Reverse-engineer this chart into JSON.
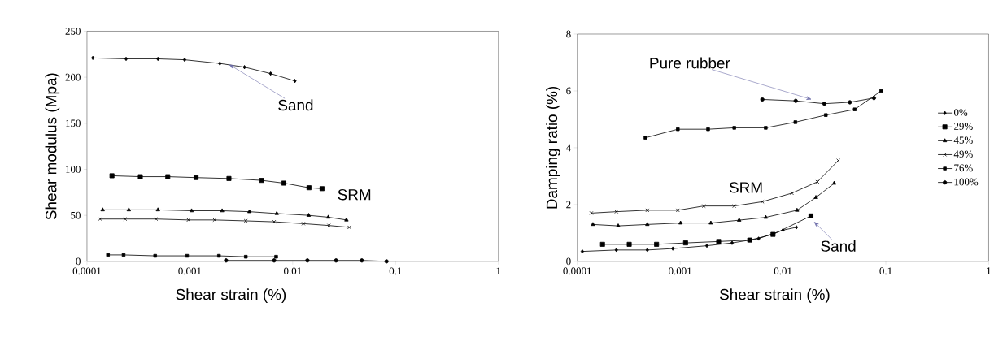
{
  "chart_data": [
    {
      "type": "line",
      "xlabel": "Shear strain (%)",
      "ylabel": "Shear modulus (Mpa)",
      "log": "x",
      "xlim": [
        0.0001,
        1
      ],
      "ylim": [
        0,
        250
      ],
      "xticks": [
        0.0001,
        0.001,
        0.01,
        0.1,
        1
      ],
      "yticks": [
        0,
        50,
        100,
        150,
        200,
        250
      ],
      "grid": false,
      "legend": false,
      "annotations": [
        {
          "text": "Sand",
          "x": 0.0024,
          "y": 214
        },
        "SRM"
      ],
      "series": [
        {
          "color": "#000000",
          "marker": "diamond",
          "x": [
            0.000114,
            0.00024,
            0.00049,
            0.00089,
            0.00196,
            0.0034,
            0.0061,
            0.0105
          ],
          "values": [
            221,
            220,
            220,
            219,
            215,
            211,
            204,
            196
          ]
        },
        {
          "color": "#000000",
          "marker": "square",
          "x": [
            0.000175,
            0.00033,
            0.00061,
            0.00115,
            0.0024,
            0.005,
            0.0082,
            0.0144,
            0.0193
          ],
          "values": [
            93,
            92,
            92,
            91,
            90,
            88,
            85,
            80,
            79
          ]
        },
        {
          "color": "#000000",
          "marker": "triangle",
          "x": [
            0.000142,
            0.000255,
            0.00049,
            0.00104,
            0.00206,
            0.0038,
            0.007,
            0.0143,
            0.0222,
            0.0333
          ],
          "values": [
            56,
            56,
            56,
            55,
            55,
            54,
            52,
            50,
            48,
            45
          ]
        },
        {
          "color": "#000000",
          "marker": "cross",
          "x": [
            0.000134,
            0.000235,
            0.00047,
            0.00097,
            0.00174,
            0.0035,
            0.0066,
            0.0127,
            0.0225,
            0.0355
          ],
          "values": [
            46,
            46,
            46,
            45,
            45,
            44,
            43,
            41,
            39,
            37
          ]
        },
        {
          "color": "#000000",
          "marker": "square",
          "x": [
            0.00016,
            0.000227,
            0.00046,
            0.00094,
            0.00192,
            0.0035,
            0.0069
          ],
          "values": [
            7,
            7,
            6,
            6,
            6,
            5,
            5
          ]
        },
        {
          "color": "#000000",
          "marker": "circle",
          "x": [
            0.00225,
            0.0066,
            0.0139,
            0.0264,
            0.047,
            0.0817
          ],
          "values": [
            1,
            1,
            1,
            1,
            1,
            0
          ]
        }
      ]
    },
    {
      "type": "line",
      "xlabel": "Shear strain (%)",
      "ylabel": "Damping ratio (%)",
      "log": "x",
      "xlim": [
        0.0001,
        1
      ],
      "ylim": [
        0,
        8
      ],
      "xticks": [
        0.0001,
        0.001,
        0.01,
        0.1,
        1
      ],
      "yticks": [
        0,
        2,
        4,
        6,
        8
      ],
      "grid": false,
      "legend": "right",
      "annotations": [
        {
          "text": "Pure rubber",
          "x": 0.019,
          "y": 5.7
        },
        "SRM",
        {
          "text": "Sand",
          "x": 0.02,
          "y": 1.4
        }
      ],
      "series": [
        {
          "name": "0%",
          "color": "#000000",
          "marker": "diamond",
          "x": [
            0.000112,
            0.00024,
            0.00048,
            0.00085,
            0.00182,
            0.0032,
            0.0058,
            0.0076,
            0.01,
            0.0135
          ],
          "values": [
            0.35,
            0.4,
            0.4,
            0.45,
            0.55,
            0.65,
            0.8,
            null,
            1.1,
            1.2
          ]
        },
        {
          "name": "29%",
          "color": "#000000",
          "marker": "square",
          "x": [
            0.000176,
            0.00032,
            0.00059,
            0.00113,
            0.00237,
            0.00475,
            0.008,
            0.0187
          ],
          "values": [
            0.6,
            0.6,
            0.6,
            0.65,
            0.7,
            0.75,
            0.95,
            1.6
          ]
        },
        {
          "name": "45%",
          "color": "#000000",
          "marker": "triangle",
          "x": [
            0.000142,
            0.00025,
            0.00048,
            0.00101,
            0.00199,
            0.00375,
            0.0068,
            0.0137,
            0.0209,
            0.0315
          ],
          "values": [
            1.3,
            1.25,
            1.3,
            1.35,
            1.35,
            1.45,
            1.55,
            1.8,
            2.25,
            2.75
          ]
        },
        {
          "name": "49%",
          "color": "#000000",
          "marker": "cross",
          "x": [
            0.000137,
            0.00024,
            0.00048,
            0.00095,
            0.0017,
            0.00336,
            0.0063,
            0.0122,
            0.0216,
            0.0345
          ],
          "values": [
            1.7,
            1.75,
            1.8,
            1.8,
            1.95,
            1.95,
            2.1,
            2.4,
            2.8,
            3.55
          ]
        },
        {
          "name": "76%",
          "color": "#000000",
          "marker": "square",
          "x": [
            0.00046,
            0.00095,
            0.00187,
            0.00336,
            0.0068,
            0.0132,
            0.0261,
            0.0499,
            0.0902
          ],
          "values": [
            4.35,
            4.65,
            4.65,
            4.7,
            4.7,
            4.9,
            5.15,
            5.35,
            6.0
          ]
        },
        {
          "name": "100%",
          "color": "#000000",
          "marker": "circle",
          "x": [
            0.0063,
            0.0133,
            0.0252,
            0.0447,
            0.0767
          ],
          "values": [
            5.7,
            5.65,
            5.55,
            5.6,
            5.75
          ]
        }
      ]
    }
  ]
}
